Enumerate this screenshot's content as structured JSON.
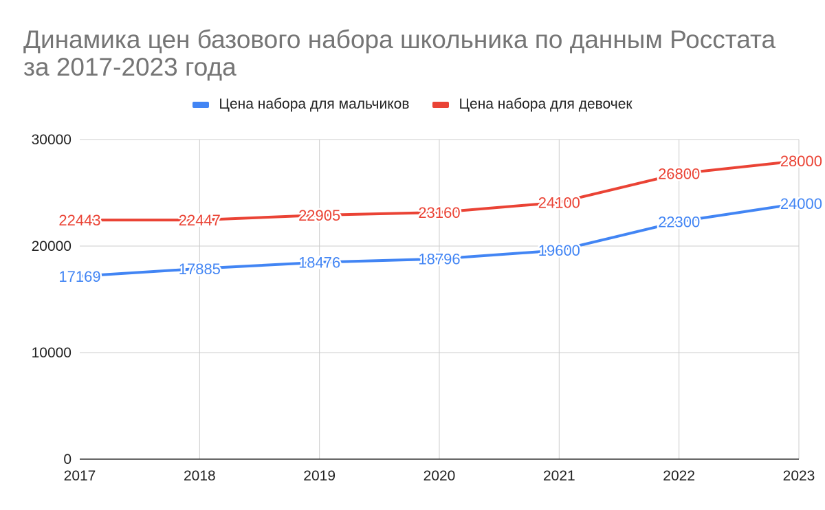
{
  "chart_data": {
    "type": "line",
    "title": "Динамика цен базового набора школьника по данным Росстата за 2017-2023 года",
    "x": [
      "2017",
      "2018",
      "2019",
      "2020",
      "2021",
      "2022",
      "2023"
    ],
    "y_ticks": [
      "0",
      "10000",
      "20000",
      "30000"
    ],
    "ylim": [
      0,
      30000
    ],
    "grid": true,
    "legend_position": "top",
    "series": [
      {
        "name": "Цена набора для мальчиков",
        "color": "#4285f4",
        "values": [
          17169,
          17885,
          18476,
          18796,
          19600,
          22300,
          24000
        ],
        "labels": [
          "17169",
          "17885",
          "18476",
          "18796",
          "19600",
          "22300",
          "24000"
        ]
      },
      {
        "name": "Цена набора для девочек",
        "color": "#ea4335",
        "values": [
          22443,
          22447,
          22905,
          23160,
          24100,
          26800,
          28000
        ],
        "labels": [
          "22443",
          "22447",
          "22905",
          "23160",
          "24100",
          "26800",
          "28000"
        ]
      }
    ]
  }
}
